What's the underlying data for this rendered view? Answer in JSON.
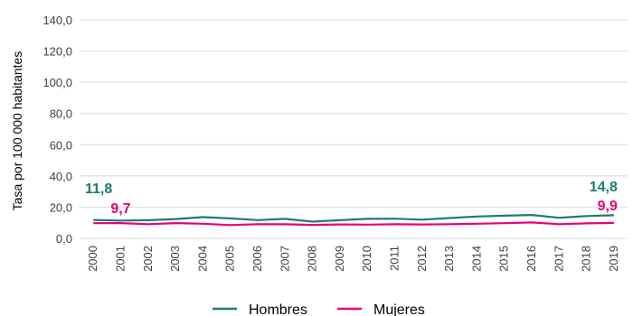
{
  "chart_data": {
    "type": "line",
    "ylabel": "Tasa por 100 000 habitantes",
    "xlabel": "",
    "ylim": [
      0,
      140
    ],
    "ytick_step": 20,
    "ytick_labels": [
      "0,0",
      "20,0",
      "40,0",
      "60,0",
      "80,0",
      "100,0",
      "120,0",
      "140,0"
    ],
    "categories": [
      "2000",
      "2001",
      "2002",
      "2003",
      "2004",
      "2005",
      "2006",
      "2007",
      "2008",
      "2009",
      "2010",
      "2011",
      "2012",
      "2013",
      "2014",
      "2015",
      "2016",
      "2017",
      "2018",
      "2019"
    ],
    "grid": "horizontal",
    "legend_position": "bottom",
    "series": [
      {
        "name": "Hombres",
        "color": "#1e7b72",
        "values": [
          11.8,
          11.4,
          11.6,
          12.4,
          13.6,
          12.8,
          11.7,
          12.5,
          10.7,
          11.6,
          12.5,
          12.6,
          12.0,
          13.0,
          14.0,
          14.5,
          15.0,
          13.2,
          14.3,
          14.8
        ],
        "start_label": "11,8",
        "end_label": "14,8"
      },
      {
        "name": "Mujeres",
        "color": "#e6007e",
        "values": [
          9.7,
          9.8,
          9.1,
          9.8,
          9.4,
          8.5,
          9.1,
          9.0,
          8.6,
          8.9,
          8.8,
          9.0,
          8.9,
          9.1,
          9.4,
          9.7,
          10.2,
          9.1,
          9.6,
          9.9
        ],
        "start_label": "9,7",
        "end_label": "9,9"
      }
    ]
  }
}
